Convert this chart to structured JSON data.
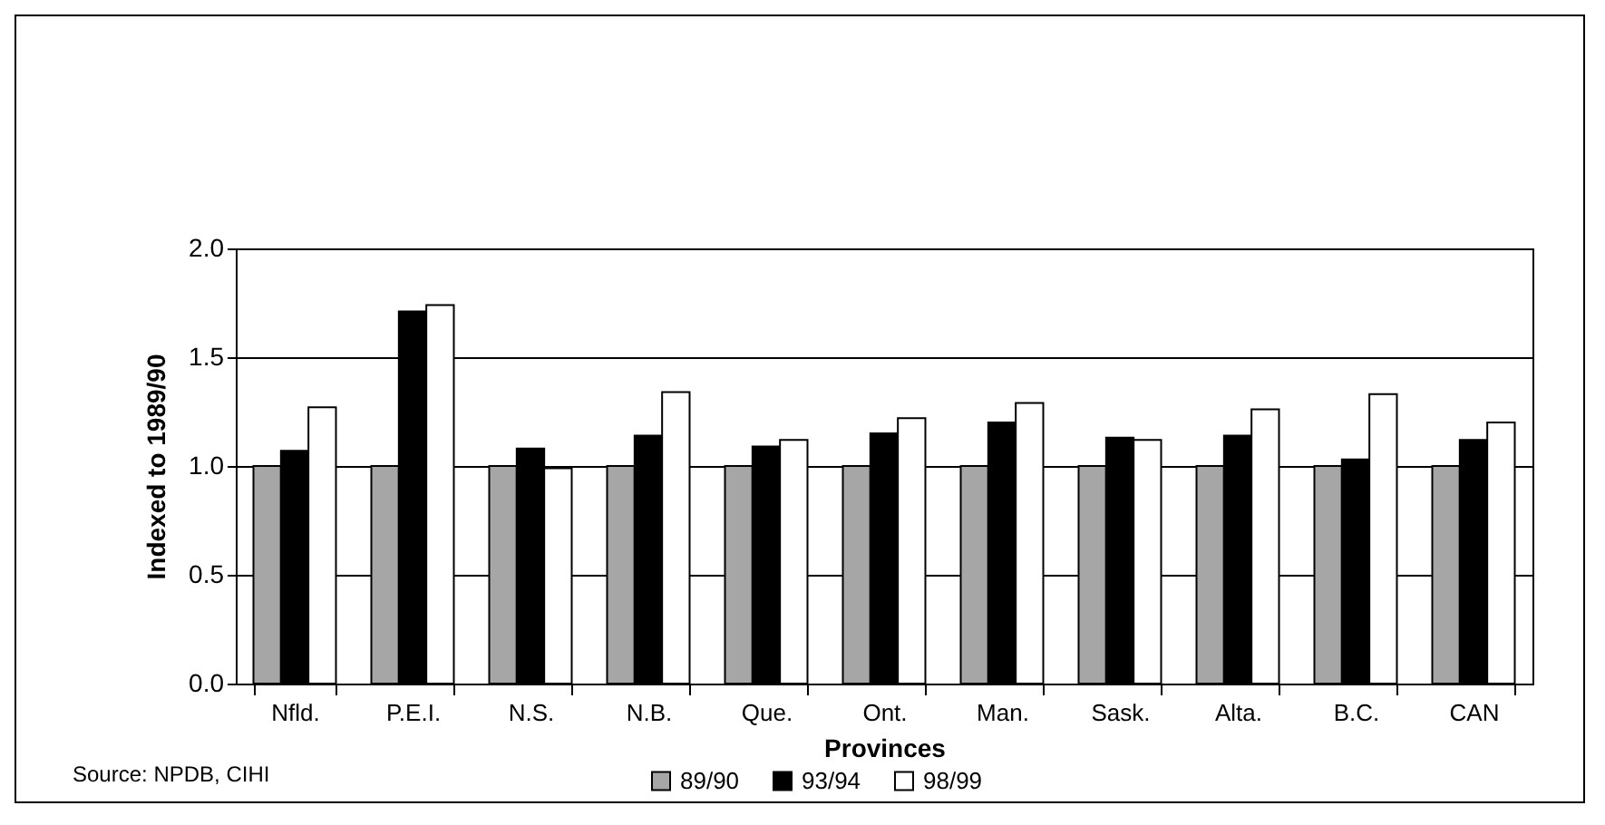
{
  "chart_data": {
    "type": "bar",
    "xlabel": "Provinces",
    "ylabel": "Indexed to 1989/90",
    "categories": [
      "Nfld.",
      "P.E.I.",
      "N.S.",
      "N.B.",
      "Que.",
      "Ont.",
      "Man.",
      "Sask.",
      "Alta.",
      "B.C.",
      "CAN"
    ],
    "series": [
      {
        "name": "89/90",
        "color": "#a6a6a6",
        "values": [
          1.0,
          1.0,
          1.0,
          1.0,
          1.0,
          1.0,
          1.0,
          1.0,
          1.0,
          1.0,
          1.0
        ]
      },
      {
        "name": "93/94",
        "color": "#000000",
        "values": [
          1.07,
          1.71,
          1.08,
          1.14,
          1.09,
          1.15,
          1.2,
          1.13,
          1.14,
          1.03,
          1.12
        ]
      },
      {
        "name": "98/99",
        "color": "#ffffff",
        "values": [
          1.27,
          1.74,
          0.99,
          1.34,
          1.12,
          1.22,
          1.29,
          1.12,
          1.26,
          1.33,
          1.2
        ]
      }
    ],
    "ylim": [
      0,
      2
    ],
    "yticks": [
      {
        "value": 0,
        "label": "0.0"
      },
      {
        "value": 0.5,
        "label": "0.5"
      },
      {
        "value": 1,
        "label": "1.0"
      },
      {
        "value": 1.5,
        "label": "1.5"
      },
      {
        "value": 2,
        "label": "2.0"
      }
    ],
    "grid": "y",
    "legend": "bottom",
    "annotations": [
      "Source: NPDB, CIHI"
    ]
  }
}
